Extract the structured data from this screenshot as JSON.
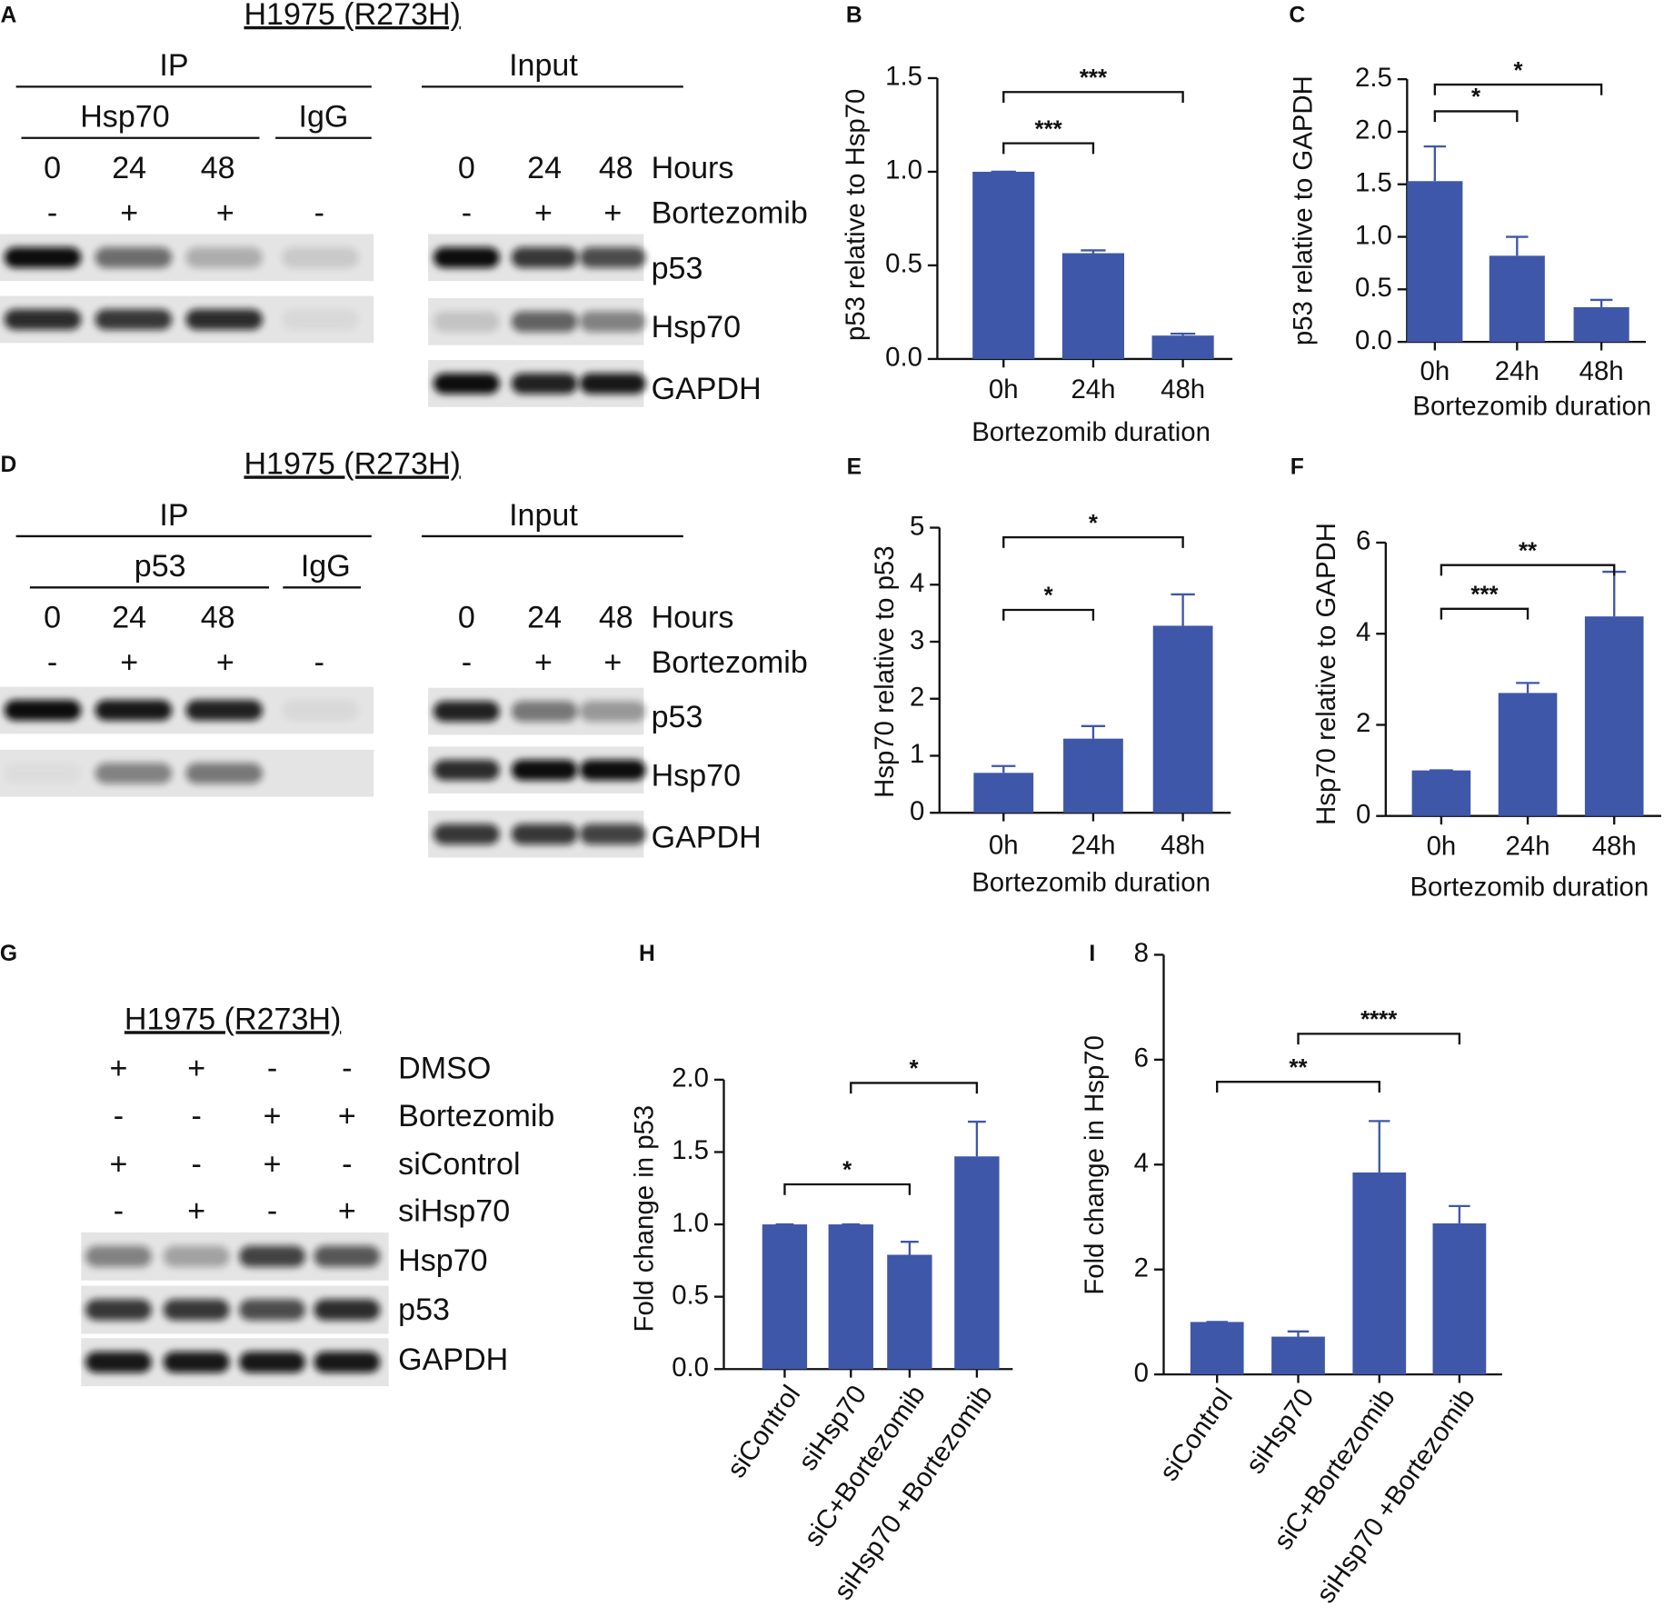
{
  "blots": [
    {
      "letter": "A",
      "title": "H1975 (R273H)",
      "ip": {
        "label": "IP",
        "antibody": "Hsp70",
        "control": "IgG",
        "lanes": [
          0,
          24,
          48
        ],
        "treatment": [
          "-",
          "+",
          "+",
          "-"
        ]
      },
      "input": {
        "label": "Input",
        "lanes": [
          0,
          24,
          48
        ],
        "lanes_label": "Hours",
        "treatment": [
          "-",
          "+",
          "+"
        ],
        "treatment_label": "Bortezomib",
        "proteins": [
          "p53",
          "Hsp70",
          "GAPDH"
        ]
      }
    },
    {
      "letter": "D",
      "title": "H1975 (R273H)",
      "ip": {
        "label": "IP",
        "antibody": "p53",
        "control": "IgG",
        "lanes": [
          0,
          24,
          48
        ],
        "treatment": [
          "-",
          "+",
          "+",
          "-"
        ]
      },
      "input": {
        "label": "Input",
        "lanes": [
          0,
          24,
          48
        ],
        "lanes_label": "Hours",
        "treatment": [
          "-",
          "+",
          "+"
        ],
        "treatment_label": "Bortezomib",
        "proteins": [
          "p53",
          "Hsp70",
          "GAPDH"
        ]
      }
    }
  ],
  "knockdown_blot": {
    "letter": "G",
    "title": "H1975 (R273H)",
    "conditions": [
      {
        "label": "DMSO",
        "signs": [
          "+",
          "+",
          "-",
          "-"
        ]
      },
      {
        "label": "Bortezomib",
        "signs": [
          "-",
          "-",
          "+",
          "+"
        ]
      },
      {
        "label": "siControl",
        "signs": [
          "+",
          "-",
          "+",
          "-"
        ]
      },
      {
        "label": "siHsp70",
        "signs": [
          "-",
          "+",
          "-",
          "+"
        ]
      }
    ],
    "proteins": [
      "Hsp70",
      "p53",
      "GAPDH"
    ]
  },
  "chart_data": [
    {
      "type": "bar",
      "panel": "B",
      "ylabel": "p53 relative to Hsp70",
      "xlabel": "Bortezomib duration",
      "categories": [
        "0h",
        "24h",
        "48h"
      ],
      "values": [
        1.0,
        0.565,
        0.125
      ],
      "errors": [
        0,
        0.015,
        0.01
      ],
      "color": "#3f57a8",
      "ylim": [
        0,
        1.5
      ],
      "yticks": [
        {
          "value": 0,
          "label": "0.0"
        },
        0.5,
        {
          "value": 1,
          "label": "1.0"
        },
        1.5
      ],
      "annotations": [
        "***",
        "***"
      ]
    },
    {
      "type": "bar",
      "panel": "C",
      "ylabel": "p53 relative to GAPDH",
      "xlabel": "Bortezomib duration",
      "categories": [
        "0h",
        "24h",
        "48h"
      ],
      "values": [
        1.53,
        0.82,
        0.33
      ],
      "errors": [
        0.33,
        0.18,
        0.07
      ],
      "color": "#3f57a8",
      "ylim": [
        0,
        2.5
      ],
      "yticks": [
        {
          "value": 0,
          "label": "0.0"
        },
        0.5,
        {
          "value": 1,
          "label": "1.0"
        },
        1.5,
        {
          "value": 2,
          "label": "2.0"
        },
        2.5
      ],
      "annotations": [
        "*",
        "*"
      ]
    },
    {
      "type": "bar",
      "panel": "E",
      "ylabel": "Hsp70 relative to p53",
      "xlabel": "Bortezomib duration",
      "categories": [
        "0h",
        "24h",
        "48h"
      ],
      "values": [
        0.7,
        1.3,
        3.28
      ],
      "errors": [
        0.12,
        0.22,
        0.55
      ],
      "color": "#3f57a8",
      "ylim": [
        0,
        5
      ],
      "yticks": [
        0,
        1,
        2,
        3,
        4,
        5
      ],
      "annotations": [
        "*",
        "*"
      ]
    },
    {
      "type": "bar",
      "panel": "F",
      "ylabel": "Hsp70 relative to GAPDH",
      "xlabel": "Bortezomib duration",
      "categories": [
        "0h",
        "24h",
        "48h"
      ],
      "values": [
        1.0,
        2.7,
        4.38
      ],
      "errors": [
        0,
        0.22,
        0.98
      ],
      "color": "#3f57a8",
      "ylim": [
        0,
        6
      ],
      "yticks": [
        0,
        2,
        4,
        6
      ],
      "annotations": [
        "***",
        "**"
      ]
    },
    {
      "type": "bar",
      "panel": "H",
      "ylabel": "Fold change in p53",
      "categories": [
        "siControl",
        "siHsp70",
        "siC+Bortezomib",
        "siHsp70 +Bortezomib"
      ],
      "values": [
        1.0,
        1.0,
        0.79,
        1.47
      ],
      "errors": [
        0,
        0,
        0.09,
        0.24
      ],
      "color": "#3f57a8",
      "ylim": [
        0,
        2
      ],
      "yticks": [
        {
          "value": 0,
          "label": "0.0"
        },
        0.5,
        {
          "value": 1,
          "label": "1.0"
        },
        1.5,
        {
          "value": 2,
          "label": "2.0"
        }
      ],
      "annotations": [
        "*",
        "*"
      ]
    },
    {
      "type": "bar",
      "panel": "I",
      "ylabel": "Fold change in Hsp70",
      "categories": [
        "siControl",
        "siHsp70",
        "siC+Bortezomib",
        "siHsp70 +Bortezomib"
      ],
      "values": [
        1.0,
        0.72,
        3.85,
        2.88
      ],
      "errors": [
        0,
        0.1,
        0.98,
        0.33
      ],
      "color": "#3f57a8",
      "ylim": [
        0,
        8
      ],
      "yticks": [
        0,
        2,
        4,
        6,
        8
      ],
      "annotations": [
        "**",
        "****"
      ]
    }
  ]
}
